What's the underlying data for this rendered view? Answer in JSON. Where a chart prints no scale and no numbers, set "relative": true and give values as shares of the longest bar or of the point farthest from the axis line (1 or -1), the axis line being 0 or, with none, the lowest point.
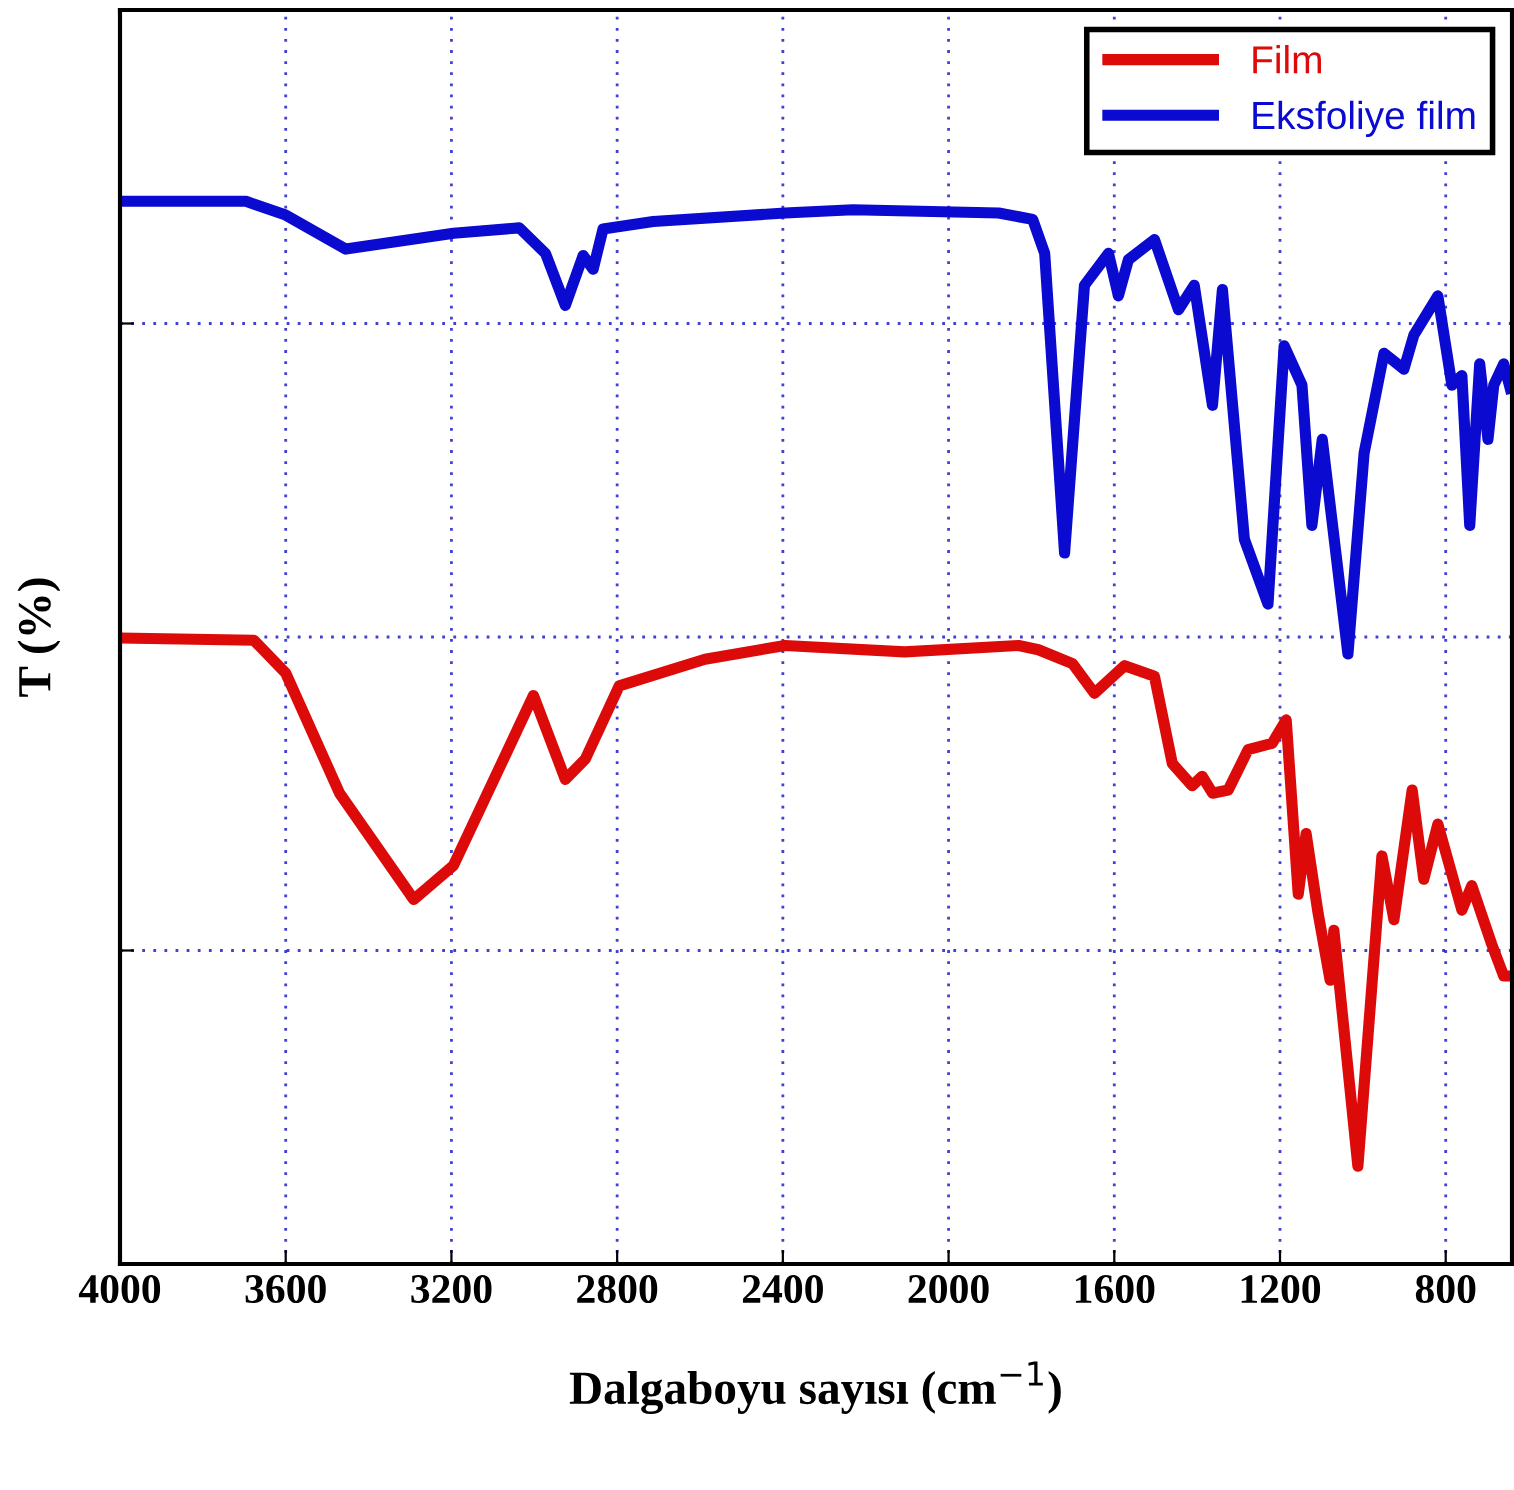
{
  "chart_data": {
    "type": "line",
    "xlabel": "Dalgaboyu sayısı (cm$^{−1}$)",
    "ylabel": "T (%)",
    "relative": true,
    "grid": true,
    "legend": "top right",
    "line_style": "solid",
    "xlim": [
      4000,
      640
    ],
    "xticks": [
      4000,
      3600,
      3200,
      2800,
      2400,
      2000,
      1600,
      1200,
      800
    ],
    "series": [
      {
        "name": "Film",
        "color": "#dd0a0a",
        "x": [
          4000,
          3677,
          3600,
          3470,
          3291,
          3195,
          3002,
          2925,
          2877,
          2795,
          2588,
          2395,
          2106,
          1831,
          1783,
          1701,
          1648,
          1575,
          1503,
          1460,
          1412,
          1388,
          1363,
          1325,
          1277,
          1219,
          1185,
          1156,
          1137,
          1108,
          1079,
          1070,
          1012,
          954,
          925,
          881,
          853,
          819,
          761,
          737,
          689,
          660,
          641
        ],
        "values": [
          0.589,
          0.587,
          0.556,
          0.443,
          0.343,
          0.375,
          0.535,
          0.456,
          0.475,
          0.544,
          0.569,
          0.582,
          0.576,
          0.582,
          0.578,
          0.565,
          0.537,
          0.563,
          0.553,
          0.471,
          0.45,
          0.459,
          0.443,
          0.446,
          0.484,
          0.49,
          0.512,
          0.348,
          0.405,
          0.33,
          0.267,
          0.314,
          0.092,
          0.384,
          0.324,
          0.446,
          0.362,
          0.414,
          0.333,
          0.356,
          0.301,
          0.271,
          0.271
        ]
      },
      {
        "name": "Eksfoliye film",
        "color": "#0a0ad0",
        "x": [
          4000,
          3696,
          3600,
          3455,
          3195,
          3036,
          2973,
          2925,
          2882,
          2858,
          2834,
          2713,
          2395,
          2231,
          1879,
          1797,
          1768,
          1720,
          1672,
          1614,
          1590,
          1566,
          1503,
          1445,
          1407,
          1363,
          1339,
          1286,
          1229,
          1190,
          1147,
          1123,
          1098,
          1036,
          997,
          949,
          901,
          877,
          819,
          785,
          761,
          742,
          718,
          698,
          684,
          660,
          641
        ],
        "values": [
          1.0,
          1.0,
          0.987,
          0.955,
          0.97,
          0.975,
          0.951,
          0.902,
          0.949,
          0.936,
          0.974,
          0.981,
          0.989,
          0.992,
          0.989,
          0.983,
          0.951,
          0.669,
          0.921,
          0.951,
          0.911,
          0.945,
          0.964,
          0.898,
          0.921,
          0.808,
          0.917,
          0.682,
          0.621,
          0.864,
          0.827,
          0.695,
          0.776,
          0.574,
          0.763,
          0.857,
          0.842,
          0.874,
          0.911,
          0.827,
          0.836,
          0.695,
          0.847,
          0.776,
          0.827,
          0.847,
          0.819
        ]
      }
    ]
  }
}
